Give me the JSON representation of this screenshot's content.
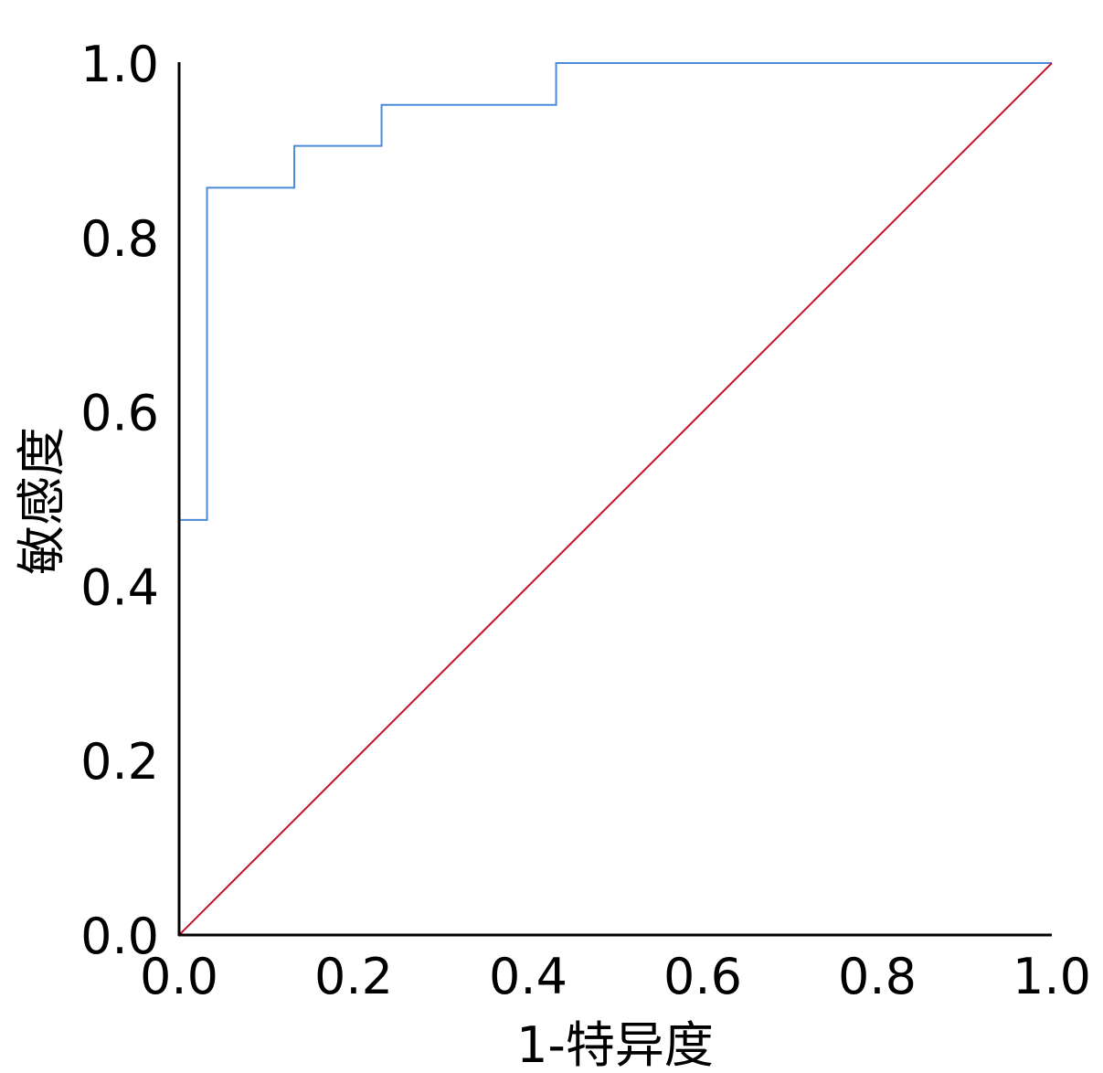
{
  "chart_data": {
    "type": "line",
    "title": "",
    "xlabel": "1-特异度",
    "ylabel": "敏感度",
    "xlim": [
      0,
      1
    ],
    "ylim": [
      0,
      1
    ],
    "x_ticks": [
      "0.0",
      "0.2",
      "0.4",
      "0.6",
      "0.8",
      "1.0"
    ],
    "y_ticks": [
      "0.0",
      "0.2",
      "0.4",
      "0.6",
      "0.8",
      "1.0"
    ],
    "grid": false,
    "legend": "none",
    "series": [
      {
        "color": "#4a8ad8",
        "step": true,
        "x": [
          0.0,
          0.0,
          0.032,
          0.032,
          0.132,
          0.132,
          0.232,
          0.232,
          0.432,
          0.432,
          1.0
        ],
        "y": [
          0.0,
          0.476,
          0.476,
          0.857,
          0.857,
          0.905,
          0.905,
          0.952,
          0.952,
          1.0,
          1.0
        ]
      },
      {
        "color": "#c8102e",
        "x": [
          0.0,
          1.0
        ],
        "y": [
          0.0,
          1.0
        ]
      }
    ]
  }
}
